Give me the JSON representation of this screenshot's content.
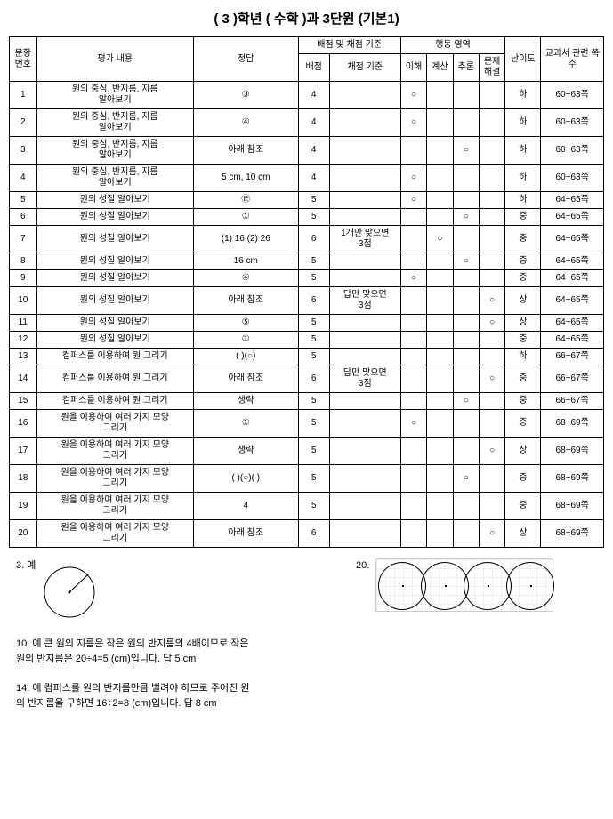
{
  "title": "( 3 )학년 ( 수학 )과 3단원 (기본1)",
  "headers": {
    "num": "문항\n번호",
    "content": "평가 내용",
    "answer": "정답",
    "scoring_group": "배점 및 채점 기준",
    "score": "배점",
    "criteria": "채점 기준",
    "behavior_group": "행동 영역",
    "b1": "이해",
    "b2": "계산",
    "b3": "추론",
    "b4": "문제\n해결",
    "difficulty": "난이도",
    "ref": "교과서\n관련 쪽수"
  },
  "rows": [
    {
      "n": "1",
      "content": "원의 중심, 반지름, 지름\n알아보기",
      "answer": "③",
      "score": "4",
      "criteria": "",
      "b": [
        "○",
        "",
        "",
        ""
      ],
      "diff": "하",
      "ref": "60~63쪽"
    },
    {
      "n": "2",
      "content": "원의 중심, 반지름, 지름\n알아보기",
      "answer": "④",
      "score": "4",
      "criteria": "",
      "b": [
        "○",
        "",
        "",
        ""
      ],
      "diff": "하",
      "ref": "60~63쪽"
    },
    {
      "n": "3",
      "content": "원의 중심, 반지름, 지름\n알아보기",
      "answer": "아래 참조",
      "score": "4",
      "criteria": "",
      "b": [
        "",
        "",
        "○",
        ""
      ],
      "diff": "하",
      "ref": "60~63쪽"
    },
    {
      "n": "4",
      "content": "원의 중심, 반지름, 지름\n알아보기",
      "answer": "5 cm, 10 cm",
      "score": "4",
      "criteria": "",
      "b": [
        "○",
        "",
        "",
        ""
      ],
      "diff": "하",
      "ref": "60~63쪽"
    },
    {
      "n": "5",
      "content": "원의 성질 알아보기",
      "answer": "㉣",
      "score": "5",
      "criteria": "",
      "b": [
        "○",
        "",
        "",
        ""
      ],
      "diff": "하",
      "ref": "64~65쪽"
    },
    {
      "n": "6",
      "content": "원의 성질 알아보기",
      "answer": "①",
      "score": "5",
      "criteria": "",
      "b": [
        "",
        "",
        "○",
        ""
      ],
      "diff": "중",
      "ref": "64~65쪽"
    },
    {
      "n": "7",
      "content": "원의 성질 알아보기",
      "answer": "(1) 16 (2) 26",
      "score": "6",
      "criteria": "1개만 맞으면\n3점",
      "b": [
        "",
        "○",
        "",
        ""
      ],
      "diff": "중",
      "ref": "64~65쪽"
    },
    {
      "n": "8",
      "content": "원의 성질 알아보기",
      "answer": "16 cm",
      "score": "5",
      "criteria": "",
      "b": [
        "",
        "",
        "○",
        ""
      ],
      "diff": "중",
      "ref": "64~65쪽"
    },
    {
      "n": "9",
      "content": "원의 성질 알아보기",
      "answer": "④",
      "score": "5",
      "criteria": "",
      "b": [
        "○",
        "",
        "",
        ""
      ],
      "diff": "중",
      "ref": "64~65쪽"
    },
    {
      "n": "10",
      "content": "원의 성질 알아보기",
      "answer": "아래 참조",
      "score": "6",
      "criteria": "답만 맞으면\n3점",
      "b": [
        "",
        "",
        "",
        "○"
      ],
      "diff": "상",
      "ref": "64~65쪽"
    },
    {
      "n": "11",
      "content": "원의 성질 알아보기",
      "answer": "⑤",
      "score": "5",
      "criteria": "",
      "b": [
        "",
        "",
        "",
        "○"
      ],
      "diff": "상",
      "ref": "64~65쪽"
    },
    {
      "n": "12",
      "content": "원의 성질 알아보기",
      "answer": "①",
      "score": "5",
      "criteria": "",
      "b": [
        "",
        "",
        "",
        ""
      ],
      "diff": "중",
      "ref": "64~65쪽"
    },
    {
      "n": "13",
      "content": "컴퍼스를 이용하여 원 그리기",
      "answer": "(  )(○)",
      "score": "5",
      "criteria": "",
      "b": [
        "",
        "",
        "",
        ""
      ],
      "diff": "하",
      "ref": "66~67쪽"
    },
    {
      "n": "14",
      "content": "컴퍼스를 이용하여 원 그리기",
      "answer": "아래 참조",
      "score": "6",
      "criteria": "답만 맞으면\n3점",
      "b": [
        "",
        "",
        "",
        "○"
      ],
      "diff": "중",
      "ref": "66~67쪽"
    },
    {
      "n": "15",
      "content": "컴퍼스를 이용하여 원 그리기",
      "answer": "생략",
      "score": "5",
      "criteria": "",
      "b": [
        "",
        "",
        "○",
        ""
      ],
      "diff": "중",
      "ref": "66~67쪽"
    },
    {
      "n": "16",
      "content": "원을 이용하여 여러 가지 모양\n그리기",
      "answer": "①",
      "score": "5",
      "criteria": "",
      "b": [
        "○",
        "",
        "",
        ""
      ],
      "diff": "중",
      "ref": "68~69쪽"
    },
    {
      "n": "17",
      "content": "원을 이용하여 여러 가지 모양\n그리기",
      "answer": "생략",
      "score": "5",
      "criteria": "",
      "b": [
        "",
        "",
        "",
        "○"
      ],
      "diff": "상",
      "ref": "68~69쪽"
    },
    {
      "n": "18",
      "content": "원을 이용하여 여러 가지 모양\n그리기",
      "answer": "(  )(○)(  )",
      "score": "5",
      "criteria": "",
      "b": [
        "",
        "",
        "○",
        ""
      ],
      "diff": "중",
      "ref": "68~69쪽"
    },
    {
      "n": "19",
      "content": "원을 이용하여 여러 가지 모양\n그리기",
      "answer": "4",
      "score": "5",
      "criteria": "",
      "b": [
        "",
        "",
        "",
        ""
      ],
      "diff": "중",
      "ref": "68~69쪽"
    },
    {
      "n": "20",
      "content": "원을 이용하여 여러 가지 모양\n그리기",
      "answer": "아래 참조",
      "score": "6",
      "criteria": "",
      "b": [
        "",
        "",
        "",
        "○"
      ],
      "diff": "상",
      "ref": "68~69쪽"
    }
  ],
  "notes": {
    "n3_label": "3. 예",
    "n10": "10. 예 큰 원의 지름은 작은 원의 반지름의 4배이므로 작은\n원의 반지름은 20÷4=5 (cm)입니다. 답 5 cm",
    "n14": "14. 예 컴퍼스를 원의 반지름만큼 벌려야 하므로 주어진 원\n의 반지름을 구하면 16÷2=8 (cm)입니다. 답 8 cm",
    "n20_label": "20."
  }
}
